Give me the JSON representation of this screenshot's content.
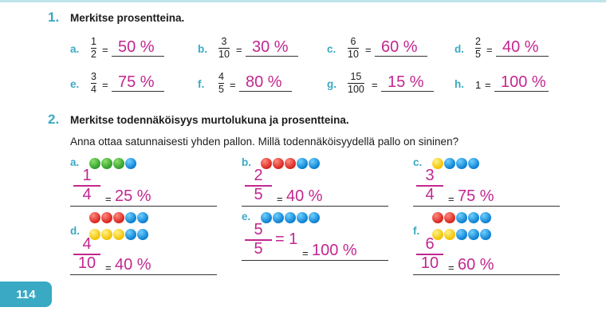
{
  "task1": {
    "number": "1.",
    "title": "Merkitse prosentteina.",
    "items": [
      {
        "label": "a.",
        "num": "1",
        "den": "2",
        "answer": "50 %"
      },
      {
        "label": "b.",
        "num": "3",
        "den": "10",
        "answer": "30 %"
      },
      {
        "label": "c.",
        "num": "6",
        "den": "10",
        "answer": "60 %"
      },
      {
        "label": "d.",
        "num": "2",
        "den": "5",
        "answer": "40 %"
      },
      {
        "label": "e.",
        "num": "3",
        "den": "4",
        "answer": "75 %"
      },
      {
        "label": "f.",
        "num": "4",
        "den": "5",
        "answer": "80 %"
      },
      {
        "label": "g.",
        "num": "15",
        "den": "100",
        "answer": "15 %"
      },
      {
        "label": "h.",
        "whole": "1",
        "answer": "100 %"
      }
    ]
  },
  "task2": {
    "number": "2.",
    "title": "Merkitse todennäköisyys murtolukuna ja prosentteina.",
    "question": "Anna ottaa satunnaisesti yhden pallon. Millä todennäköisyydellä pallo on sininen?",
    "items": [
      {
        "label": "a.",
        "num": "1",
        "den": "4",
        "answer": "25 %",
        "extra": "",
        "rows": [
          [
            "green",
            "green",
            "green",
            "blue"
          ]
        ]
      },
      {
        "label": "b.",
        "num": "2",
        "den": "5",
        "answer": "40 %",
        "extra": "",
        "rows": [
          [
            "red",
            "red",
            "red",
            "blue",
            "blue"
          ]
        ]
      },
      {
        "label": "c.",
        "num": "3",
        "den": "4",
        "answer": "75 %",
        "extra": "",
        "rows": [
          [
            "yellow",
            "blue",
            "blue",
            "blue"
          ]
        ]
      },
      {
        "label": "d.",
        "num": "4",
        "den": "10",
        "answer": "40 %",
        "extra": "",
        "rows": [
          [
            "red",
            "red",
            "red",
            "blue",
            "blue"
          ],
          [
            "yellow",
            "yellow",
            "yellow",
            "blue",
            "blue"
          ]
        ]
      },
      {
        "label": "e.",
        "num": "5",
        "den": "5",
        "answer": "100 %",
        "extra": "= 1",
        "rows": [
          [
            "blue",
            "blue",
            "blue",
            "blue",
            "blue"
          ]
        ]
      },
      {
        "label": "f.",
        "num": "6",
        "den": "10",
        "answer": "60 %",
        "extra": "",
        "rows": [
          [
            "red",
            "red",
            "blue",
            "blue",
            "blue"
          ],
          [
            "yellow",
            "yellow",
            "blue",
            "blue",
            "blue"
          ]
        ]
      }
    ]
  },
  "page_number": "114"
}
